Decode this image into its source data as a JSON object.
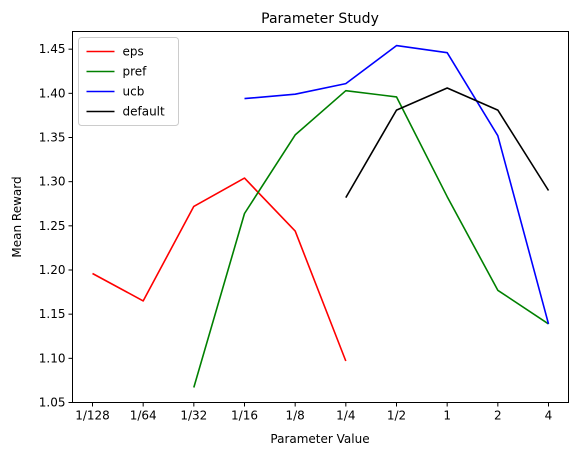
{
  "chart_data": {
    "type": "line",
    "title": "Parameter Study",
    "xlabel": "Parameter Value",
    "ylabel": "Mean Reward",
    "categories": [
      "1/128",
      "1/64",
      "1/32",
      "1/16",
      "1/8",
      "1/4",
      "1/2",
      "1",
      "2",
      "4"
    ],
    "ylim": [
      1.05,
      1.47
    ],
    "yticks": [
      "1.05",
      "1.10",
      "1.15",
      "1.20",
      "1.25",
      "1.30",
      "1.35",
      "1.40",
      "1.45"
    ],
    "grid": false,
    "legend_position": "top-left",
    "series": [
      {
        "name": "eps",
        "color": "#ff0000",
        "values": [
          1.196,
          1.165,
          1.272,
          1.304,
          1.244,
          1.097,
          null,
          null,
          null,
          null
        ]
      },
      {
        "name": "pref",
        "color": "#008000",
        "values": [
          null,
          null,
          1.067,
          1.264,
          1.353,
          1.403,
          1.396,
          1.283,
          1.177,
          1.139
        ]
      },
      {
        "name": "ucb",
        "color": "#0000ff",
        "values": [
          null,
          null,
          null,
          1.394,
          1.399,
          1.411,
          1.454,
          1.446,
          1.352,
          1.139
        ]
      },
      {
        "name": "default",
        "color": "#000000",
        "values": [
          null,
          null,
          null,
          null,
          null,
          1.282,
          1.381,
          1.406,
          1.381,
          1.29
        ]
      }
    ]
  }
}
